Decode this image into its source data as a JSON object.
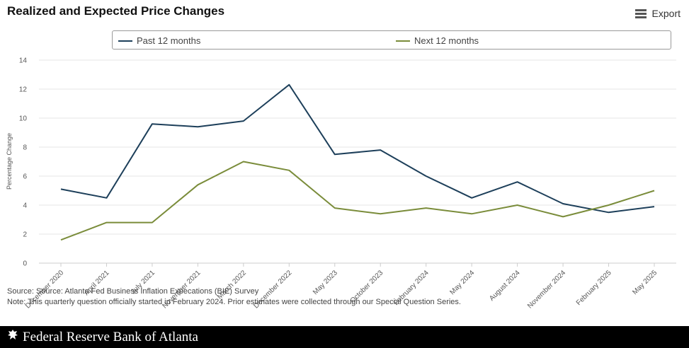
{
  "header": {
    "title": "Realized and Expected Price Changes"
  },
  "toolbar": {
    "export_label": "Export",
    "export_icon": "hamburger-menu-icon"
  },
  "chart_data": {
    "type": "line",
    "title": "Realized and Expected Price Changes",
    "xlabel": "",
    "ylabel": "Percentage Change",
    "ylim": [
      0,
      14
    ],
    "yticks": [
      0,
      2,
      4,
      6,
      8,
      10,
      12,
      14
    ],
    "grid": true,
    "legend_position": "top",
    "categories": [
      "December 2020",
      "April 2021",
      "July 2021",
      "November 2021",
      "March 2022",
      "December 2022",
      "May 2023",
      "October 2023",
      "February 2024",
      "May 2024",
      "August 2024",
      "November 2024",
      "February 2025",
      "May 2025"
    ],
    "series": [
      {
        "name": "Past 12 months",
        "color": "#1d3f5a",
        "values": [
          5.1,
          4.5,
          9.6,
          9.4,
          9.8,
          12.3,
          7.5,
          7.8,
          6.0,
          4.5,
          5.6,
          4.1,
          3.5,
          3.9
        ]
      },
      {
        "name": "Next 12 months",
        "color": "#7a8c3a",
        "values": [
          1.6,
          2.8,
          2.8,
          5.4,
          7.0,
          6.4,
          3.8,
          3.4,
          3.8,
          3.4,
          4.0,
          3.2,
          4.0,
          5.0
        ]
      }
    ]
  },
  "footer": {
    "source": "Source: Source: Atlanta Fed Business Inflation Expecations (BIE) Survey",
    "note": "Note: This quarterly question officially started in February 2024. Prior estimates were collected through our Special Question Series."
  },
  "branding": {
    "name": "Federal Reserve Bank of Atlanta",
    "logo_icon": "federal-reserve-eagle-icon"
  }
}
